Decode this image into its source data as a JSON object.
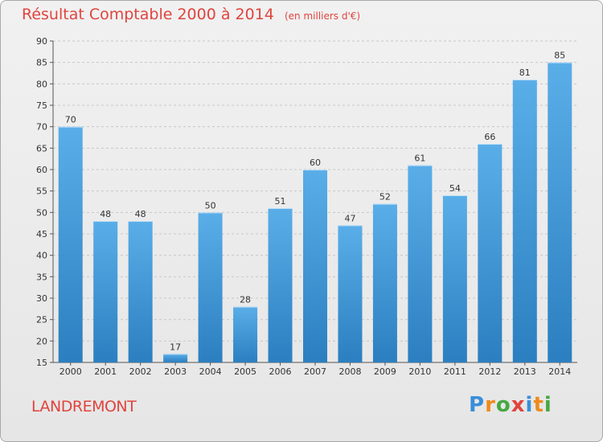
{
  "title": "Résultat Comptable 2000 à 2014",
  "subtitle": "(en milliers d'€)",
  "commune": "LANDREMONT",
  "logo": {
    "text": "Proxiti",
    "letter_colors": [
      "#3a8fd8",
      "#f08a1c",
      "#47a842",
      "#e0443e",
      "#3a8fd8",
      "#f08a1c",
      "#47a842"
    ]
  },
  "colors": {
    "title": "#e0443e",
    "bar_light": "#5aaee8",
    "bar_dark": "#2b7fc0",
    "grid": "#c8c8c8"
  },
  "chart_data": {
    "type": "bar",
    "title": "Résultat Comptable 2000 à 2014",
    "subtitle": "(en milliers d'€)",
    "xlabel": "",
    "ylabel": "",
    "categories": [
      "2000",
      "2001",
      "2002",
      "2003",
      "2004",
      "2005",
      "2006",
      "2007",
      "2008",
      "2009",
      "2010",
      "2011",
      "2012",
      "2013",
      "2014"
    ],
    "values": [
      70,
      48,
      48,
      17,
      50,
      28,
      51,
      60,
      47,
      52,
      61,
      54,
      66,
      81,
      85
    ],
    "ylim": [
      15,
      90
    ],
    "yticks": [
      15,
      20,
      25,
      30,
      35,
      40,
      45,
      50,
      55,
      60,
      65,
      70,
      75,
      80,
      85,
      90
    ],
    "grid": true,
    "data_labels": true
  }
}
